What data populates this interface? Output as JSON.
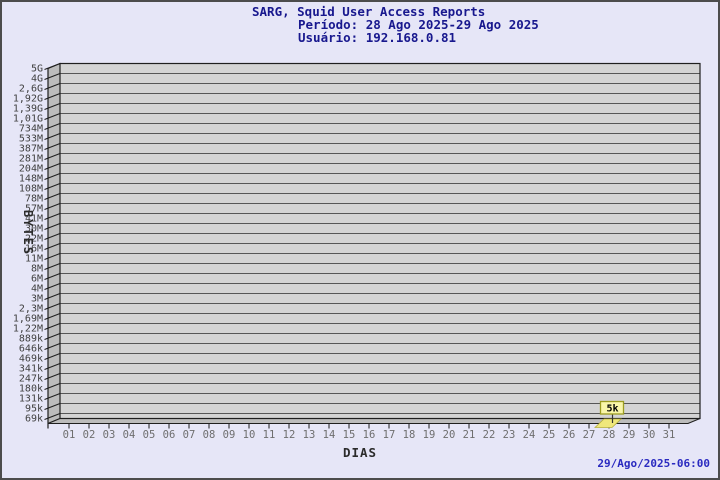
{
  "window": {
    "bg": "#e6e6f7",
    "frame_color": "#4c4c4c"
  },
  "title": {
    "line1": "SARG, Squid User Access Reports",
    "line2": "Período: 28 Ago 2025-29 Ago 2025",
    "line3": "Usuário: 192.168.0.81",
    "color": "#18188e"
  },
  "footer": {
    "timestamp": "29/Ago/2025-06:00",
    "color": "#2a2ac0"
  },
  "chart_data": {
    "type": "bar",
    "style": "3d",
    "title": "SARG, Squid User Access Reports",
    "xlabel": "DIAS",
    "ylabel": "BYTES",
    "y_scale": "log",
    "grid": "horizontal",
    "legend_position": "none",
    "x_ticks": [
      "01",
      "02",
      "03",
      "04",
      "05",
      "06",
      "07",
      "08",
      "09",
      "10",
      "11",
      "12",
      "13",
      "14",
      "15",
      "16",
      "17",
      "18",
      "19",
      "20",
      "21",
      "22",
      "23",
      "24",
      "25",
      "26",
      "27",
      "28",
      "29",
      "30",
      "31"
    ],
    "y_ticks": [
      "5G",
      "4G",
      "2,6G",
      "1,92G",
      "1,39G",
      "1,01G",
      "734M",
      "533M",
      "387M",
      "281M",
      "204M",
      "148M",
      "108M",
      "78M",
      "57M",
      "41M",
      "30M",
      "22M",
      "16M",
      "11M",
      "8M",
      "6M",
      "4M",
      "3M",
      "2,3M",
      "1,69M",
      "1,22M",
      "889k",
      "646k",
      "469k",
      "341k",
      "247k",
      "180k",
      "131k",
      "95k",
      "69k"
    ],
    "bars": [
      {
        "day": "28",
        "label": "5k"
      }
    ],
    "colors": {
      "plot_fill": "#d4d4d4",
      "wall_fill": "#bcbcbc",
      "floor_fill": "#bcbcbc",
      "grid_line": "#575757",
      "edge_line": "#1f1f1f",
      "x_tick_text": "#6e6e6e",
      "y_tick_text": "#404040",
      "axis_title_text": "#2b2b2b",
      "bar_fill": "#efe77c",
      "bar_edge": "#b5ae3a",
      "tag_fill": "#f9f6a8",
      "tag_edge": "#9c9c20",
      "tag_text": "#000000"
    }
  }
}
